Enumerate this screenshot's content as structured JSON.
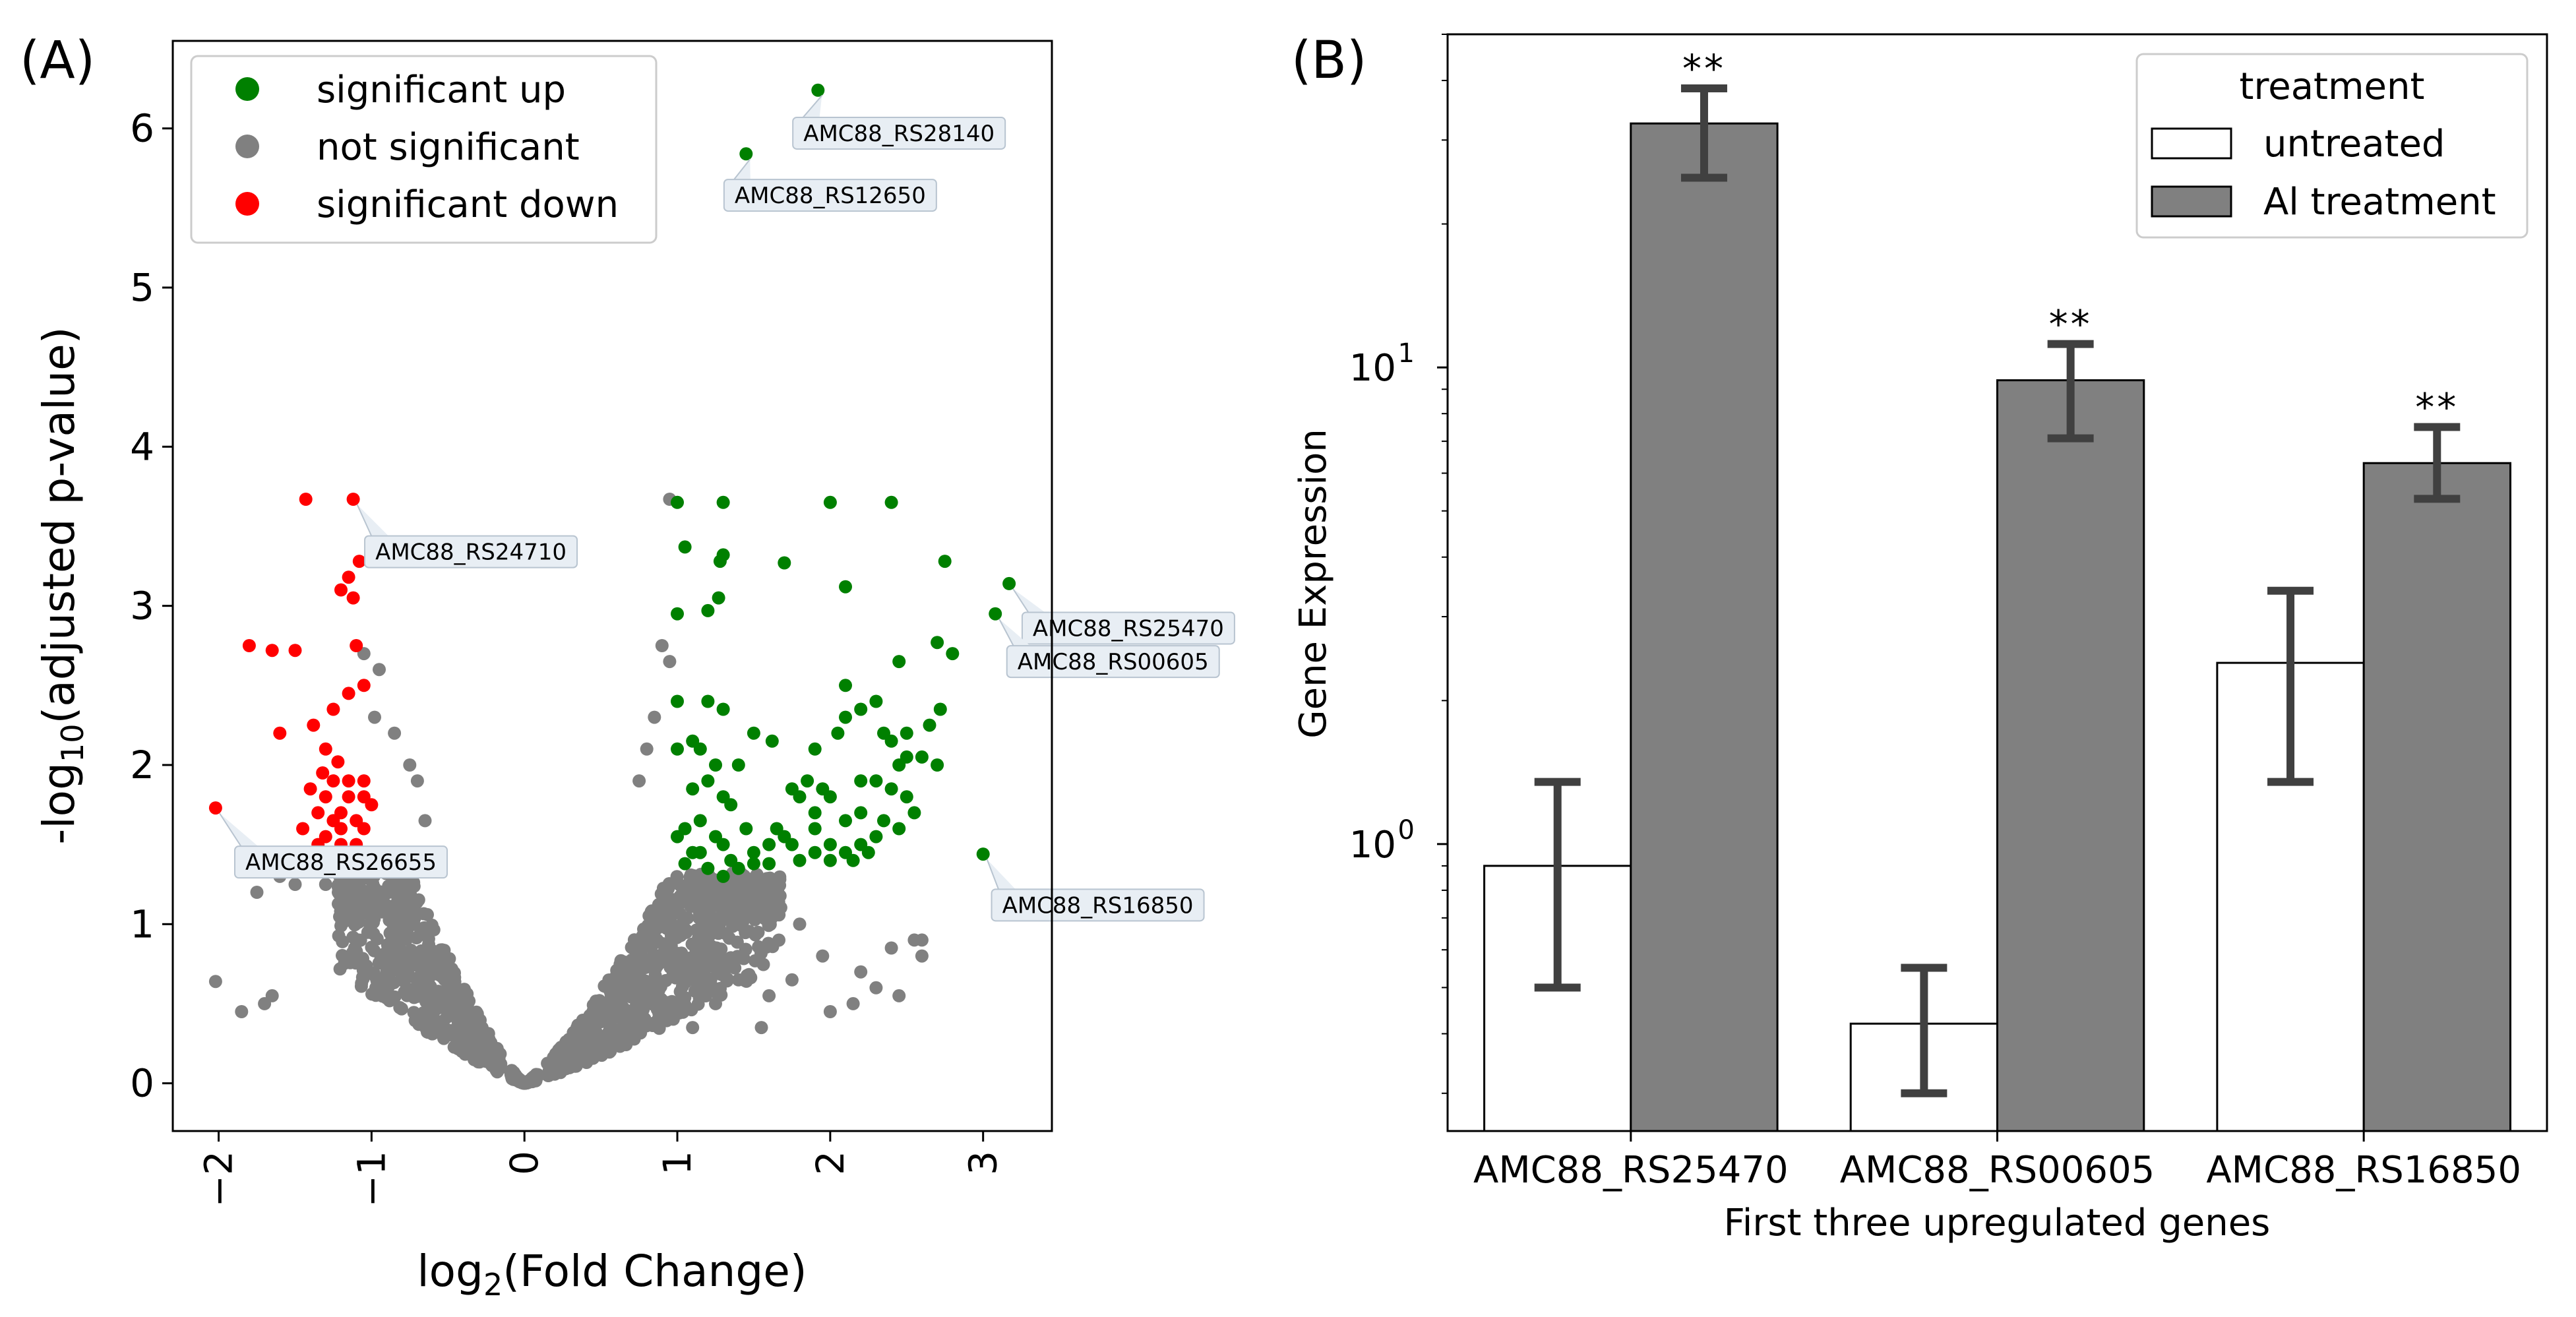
{
  "colors": {
    "up": "#008000",
    "not_sig": "#808080",
    "down": "#ff0000",
    "bar_ai": "#808080",
    "bar_untreated": "#ffffff",
    "error": "#404040",
    "callout_fill": "#e8eef4",
    "callout_stroke": "#b8c4d0"
  },
  "chart_data": [
    {
      "type": "scatter",
      "panel_label": "(A)",
      "xlabel": {
        "prefix": "log",
        "sub": "2",
        "suffix": "(Fold Change)"
      },
      "ylabel": {
        "prefix": "-log",
        "sub": "10",
        "suffix": "(adjusted p-value)"
      },
      "xlim": [
        -2.3,
        3.45
      ],
      "ylim": [
        -0.3,
        6.55
      ],
      "xticks": [
        -2,
        -1,
        0,
        1,
        2,
        3
      ],
      "xtick_labels": [
        "−2",
        "−1",
        "0",
        "1",
        "2",
        "3"
      ],
      "yticks": [
        0,
        1,
        2,
        3,
        4,
        5,
        6
      ],
      "ytick_labels": [
        "0",
        "1",
        "2",
        "3",
        "4",
        "5",
        "6"
      ],
      "legend": {
        "position": "top-left",
        "entries": [
          {
            "label": "significant up",
            "key": "up"
          },
          {
            "label": "not significant",
            "key": "not_sig"
          },
          {
            "label": "significant down",
            "key": "down"
          }
        ]
      },
      "series": [
        {
          "name": "significant up",
          "key": "up",
          "points": [
            [
              1.92,
              6.24
            ],
            [
              1.45,
              5.84
            ],
            [
              3.17,
              3.14
            ],
            [
              3.08,
              2.95
            ],
            [
              3.0,
              1.44
            ],
            [
              1.0,
              3.65
            ],
            [
              1.3,
              3.65
            ],
            [
              2.0,
              3.65
            ],
            [
              2.4,
              3.65
            ],
            [
              1.05,
              3.37
            ],
            [
              1.3,
              3.32
            ],
            [
              1.28,
              3.28
            ],
            [
              1.7,
              3.27
            ],
            [
              2.1,
              3.12
            ],
            [
              2.75,
              3.28
            ],
            [
              1.27,
              3.05
            ],
            [
              1.2,
              2.97
            ],
            [
              1.0,
              2.95
            ],
            [
              2.7,
              2.77
            ],
            [
              2.8,
              2.7
            ],
            [
              2.45,
              2.65
            ],
            [
              2.1,
              2.5
            ],
            [
              2.3,
              2.4
            ],
            [
              2.72,
              2.35
            ],
            [
              2.65,
              2.25
            ],
            [
              1.0,
              2.4
            ],
            [
              1.2,
              2.4
            ],
            [
              1.3,
              2.35
            ],
            [
              2.2,
              2.35
            ],
            [
              2.35,
              2.2
            ],
            [
              2.5,
              2.2
            ],
            [
              1.5,
              2.2
            ],
            [
              1.62,
              2.15
            ],
            [
              1.9,
              2.1
            ],
            [
              2.05,
              2.2
            ],
            [
              2.1,
              2.3
            ],
            [
              2.4,
              2.15
            ],
            [
              2.5,
              2.05
            ],
            [
              2.6,
              2.05
            ],
            [
              2.7,
              2.0
            ],
            [
              2.45,
              2.0
            ],
            [
              2.2,
              1.9
            ],
            [
              2.3,
              1.9
            ],
            [
              2.4,
              1.85
            ],
            [
              2.5,
              1.8
            ],
            [
              1.1,
              2.15
            ],
            [
              1.15,
              2.1
            ],
            [
              1.25,
              2.0
            ],
            [
              1.0,
              2.1
            ],
            [
              1.4,
              2.0
            ],
            [
              1.35,
              1.75
            ],
            [
              1.2,
              1.9
            ],
            [
              1.3,
              1.8
            ],
            [
              1.1,
              1.85
            ],
            [
              1.15,
              1.65
            ],
            [
              1.05,
              1.6
            ],
            [
              1.0,
              1.55
            ],
            [
              1.25,
              1.55
            ],
            [
              1.3,
              1.5
            ],
            [
              1.15,
              1.45
            ],
            [
              1.35,
              1.4
            ],
            [
              1.4,
              1.35
            ],
            [
              1.5,
              1.45
            ],
            [
              1.6,
              1.5
            ],
            [
              1.7,
              1.55
            ],
            [
              1.8,
              1.8
            ],
            [
              1.85,
              1.9
            ],
            [
              1.95,
              1.85
            ],
            [
              2.0,
              1.8
            ],
            [
              1.75,
              1.85
            ],
            [
              1.65,
              1.6
            ],
            [
              1.75,
              1.5
            ],
            [
              1.9,
              1.6
            ],
            [
              2.0,
              1.5
            ],
            [
              2.1,
              1.45
            ],
            [
              2.2,
              1.5
            ],
            [
              2.3,
              1.55
            ],
            [
              2.35,
              1.65
            ],
            [
              2.45,
              1.6
            ],
            [
              2.2,
              1.7
            ],
            [
              2.1,
              1.65
            ],
            [
              1.5,
              1.38
            ],
            [
              1.8,
              1.4
            ],
            [
              1.9,
              1.45
            ],
            [
              2.0,
              1.4
            ],
            [
              2.15,
              1.4
            ],
            [
              1.05,
              1.38
            ],
            [
              1.1,
              1.45
            ],
            [
              1.2,
              1.35
            ],
            [
              1.6,
              1.38
            ],
            [
              1.45,
              1.6
            ],
            [
              2.55,
              1.7
            ],
            [
              1.9,
              1.7
            ],
            [
              2.25,
              1.45
            ],
            [
              1.3,
              1.3
            ]
          ]
        },
        {
          "name": "significant down",
          "key": "down",
          "points": [
            [
              -2.02,
              1.73
            ],
            [
              -1.43,
              3.67
            ],
            [
              -1.12,
              3.67
            ],
            [
              -1.08,
              3.28
            ],
            [
              -1.15,
              3.18
            ],
            [
              -1.2,
              3.1
            ],
            [
              -1.12,
              3.05
            ],
            [
              -1.8,
              2.75
            ],
            [
              -1.65,
              2.72
            ],
            [
              -1.5,
              2.72
            ],
            [
              -1.1,
              2.75
            ],
            [
              -1.05,
              2.5
            ],
            [
              -1.15,
              2.45
            ],
            [
              -1.25,
              2.35
            ],
            [
              -1.38,
              2.25
            ],
            [
              -1.6,
              2.2
            ],
            [
              -1.3,
              2.1
            ],
            [
              -1.22,
              2.02
            ],
            [
              -1.32,
              1.95
            ],
            [
              -1.25,
              1.9
            ],
            [
              -1.15,
              1.9
            ],
            [
              -1.05,
              1.9
            ],
            [
              -1.4,
              1.85
            ],
            [
              -1.3,
              1.8
            ],
            [
              -1.15,
              1.8
            ],
            [
              -1.05,
              1.8
            ],
            [
              -1.35,
              1.7
            ],
            [
              -1.25,
              1.65
            ],
            [
              -1.2,
              1.7
            ],
            [
              -1.1,
              1.65
            ],
            [
              -1.3,
              1.55
            ],
            [
              -1.2,
              1.5
            ],
            [
              -1.4,
              1.45
            ],
            [
              -1.1,
              1.5
            ],
            [
              -1.05,
              1.6
            ],
            [
              -1.25,
              1.4
            ],
            [
              -1.15,
              1.35
            ],
            [
              -1.35,
              1.5
            ],
            [
              -1.45,
              1.6
            ],
            [
              -1.2,
              1.6
            ],
            [
              -1.0,
              1.75
            ],
            [
              -1.3,
              1.4
            ]
          ]
        }
      ],
      "annotations": [
        {
          "text": "AMC88_RS28140",
          "x": 1.92,
          "y": 6.24,
          "lx": 2.45,
          "ly": 5.97
        },
        {
          "text": "AMC88_RS12650",
          "x": 1.45,
          "y": 5.84,
          "lx": 2.0,
          "ly": 5.58
        },
        {
          "text": "AMC88_RS24710",
          "x": -1.12,
          "y": 3.67,
          "lx": -0.35,
          "ly": 3.34
        },
        {
          "text": "AMC88_RS25470",
          "x": 3.17,
          "y": 3.14,
          "lx": 3.95,
          "ly": 2.86
        },
        {
          "text": "AMC88_RS00605",
          "x": 3.08,
          "y": 2.95,
          "lx": 3.85,
          "ly": 2.65
        },
        {
          "text": "AMC88_RS26655",
          "x": -2.02,
          "y": 1.73,
          "lx": -1.2,
          "ly": 1.39
        },
        {
          "text": "AMC88_RS16850",
          "x": 3.0,
          "y": 1.44,
          "lx": 3.75,
          "ly": 1.12
        }
      ]
    },
    {
      "type": "bar",
      "panel_label": "(B)",
      "title": "",
      "xlabel": "First three upregulated genes",
      "ylabel": "Gene Expression",
      "yscale": "log",
      "ylim": [
        0.25,
        50
      ],
      "yticks": [
        1,
        10
      ],
      "ytick_labels": [
        {
          "base": "10",
          "exp": "0"
        },
        {
          "base": "10",
          "exp": "1"
        }
      ],
      "categories": [
        "AMC88_RS25470",
        "AMC88_RS00605",
        "AMC88_RS16850"
      ],
      "legend": {
        "position": "top-right",
        "title": "treatment",
        "entries": [
          {
            "label": "untreated",
            "key": "untreated"
          },
          {
            "label": "Al treatment",
            "key": "ai"
          }
        ]
      },
      "series": [
        {
          "name": "untreated",
          "key": "untreated",
          "values": [
            0.9,
            0.42,
            2.4
          ],
          "err_low": [
            0.5,
            0.3,
            1.35
          ],
          "err_high": [
            1.35,
            0.55,
            3.4
          ]
        },
        {
          "name": "Al treatment",
          "key": "ai",
          "values": [
            32.5,
            9.4,
            6.3
          ],
          "err_low": [
            25.0,
            7.1,
            5.3
          ],
          "err_high": [
            38.5,
            11.2,
            7.5
          ]
        }
      ],
      "significance": [
        "**",
        "**",
        "**"
      ]
    }
  ]
}
